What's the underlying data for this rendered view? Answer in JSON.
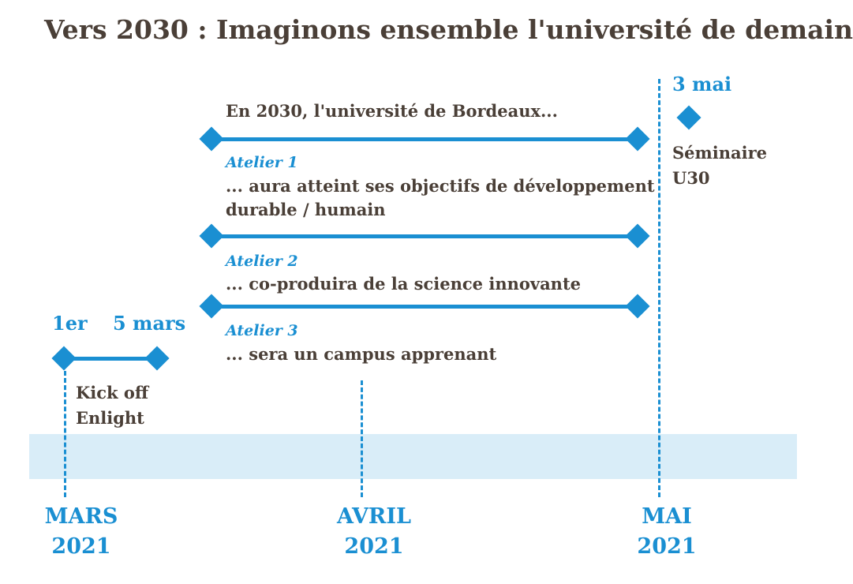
{
  "title": "Vers 2030 : Imaginons ensemble l'université de demain",
  "kickoff": {
    "start_label": "1er",
    "end_label": "5 mars",
    "line1": "Kick off",
    "line2": "Enlight"
  },
  "ateliers": {
    "intro": "En 2030, l'université de Bordeaux...",
    "a1_label": "Atelier 1",
    "a1_line1": "... aura atteint ses objectifs de développement",
    "a1_line2": "durable / humain",
    "a2_label": "Atelier 2",
    "a2_line1": "... co-produira de la science innovante",
    "a3_label": "Atelier 3",
    "a3_line1": "... sera un campus apprenant"
  },
  "seminar": {
    "date_label": "3 mai",
    "line1": "Séminaire",
    "line2": "U30"
  },
  "months": [
    {
      "name": "MARS",
      "year": "2021"
    },
    {
      "name": "AVRIL",
      "year": "2021"
    },
    {
      "name": "MAI",
      "year": "2021"
    }
  ],
  "colors": {
    "accent": "#1a8fd2",
    "text": "#4a3f37",
    "band": "#d9edf8"
  }
}
